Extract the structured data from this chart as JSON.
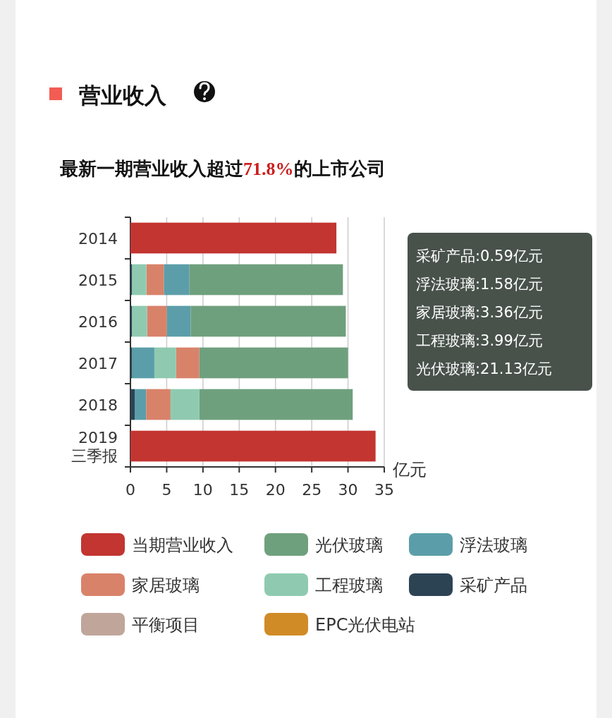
{
  "chart_data": {
    "type": "bar",
    "orientation": "horizontal",
    "title": "营业收入",
    "subtitle": "最新一期营业收入超过**71.8%**的上市公司",
    "xlabel": "亿元",
    "categories": [
      "2014",
      "2015",
      "2016",
      "2017",
      "2018",
      "2019 三季报"
    ],
    "series": [
      {
        "name": "当期营业收入",
        "color": "#c23531",
        "values": [
          28.4,
          null,
          null,
          null,
          null,
          33.8
        ],
        "base": [
          0,
          null,
          null,
          null,
          null,
          0
        ]
      },
      {
        "name": "光伏玻璃",
        "color": "#6fa07e",
        "values": [
          null,
          21.2,
          21.4,
          20.5,
          21.13,
          null
        ],
        "base": [
          null,
          8.1,
          8.3,
          9.5,
          9.52,
          null
        ]
      },
      {
        "name": "浮法玻璃",
        "color": "#5b9ea9",
        "values": [
          null,
          3.5,
          3.3,
          3.1,
          1.58,
          null
        ],
        "base": [
          null,
          4.6,
          5.0,
          0.2,
          0.59,
          null
        ]
      },
      {
        "name": "家居玻璃",
        "color": "#d9826a",
        "values": [
          null,
          2.4,
          2.7,
          3.2,
          3.36,
          null
        ],
        "base": [
          null,
          2.2,
          2.3,
          6.3,
          2.17,
          null
        ]
      },
      {
        "name": "工程玻璃",
        "color": "#8fcab0",
        "values": [
          null,
          2.0,
          2.1,
          3.0,
          3.99,
          null
        ],
        "base": [
          null,
          0.2,
          0.2,
          3.3,
          5.53,
          null
        ]
      },
      {
        "name": "采矿产品",
        "color": "#2c4354",
        "values": [
          null,
          0.2,
          0.2,
          0.2,
          0.59,
          null
        ],
        "base": [
          null,
          0,
          0,
          0,
          0,
          null
        ]
      },
      {
        "name": "平衡项目",
        "color": "#c0a59b",
        "values": [
          null,
          null,
          null,
          null,
          null,
          null
        ]
      },
      {
        "name": "EPC光伏电站",
        "color": "#d18b26",
        "values": [
          null,
          null,
          null,
          null,
          null,
          null
        ]
      }
    ],
    "xlim": [
      0,
      35
    ],
    "xticks": [
      0,
      5,
      10,
      15,
      20,
      25,
      30,
      35
    ],
    "grid": "x",
    "legend": "bottom",
    "annotations": [
      "采矿产品:0.59亿元",
      "浮法玻璃:1.58亿元",
      "家居玻璃:3.36亿元",
      "工程玻璃:3.99亿元",
      "光伏玻璃:21.13亿元"
    ]
  }
}
